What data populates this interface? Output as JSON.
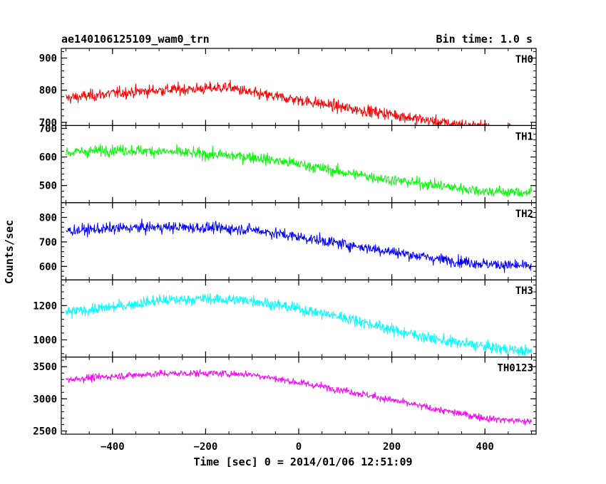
{
  "header": {
    "title": "ae140106125109_wam0_trn",
    "bin_time": "Bin time: 1.0 s"
  },
  "axes": {
    "xlabel": "Time [sec] 0 = 2014/01/06 12:51:09",
    "ylabel": "Counts/sec"
  },
  "chart_data": {
    "type": "line",
    "title": "ae140106125109_wam0_trn",
    "xlabel": "Time [sec] 0 = 2014/01/06 12:51:09",
    "ylabel": "Counts/sec",
    "xlim": [
      -510,
      510
    ],
    "x_ticks": [
      -400,
      -200,
      0,
      200,
      400
    ],
    "x_range_data": [
      -500,
      500
    ],
    "bin_time_s": 1.0,
    "panels": [
      {
        "name": "TH0",
        "color": "#ff0000",
        "ylim": [
          690,
          930
        ],
        "y_ticks": [
          700,
          800,
          900
        ],
        "trend_x": [
          -500,
          -400,
          -300,
          -200,
          -150,
          -100,
          0,
          100,
          200,
          300,
          400,
          500
        ],
        "trend_y": [
          775,
          790,
          800,
          805,
          810,
          790,
          770,
          745,
          725,
          700,
          685,
          670
        ],
        "noise": 28
      },
      {
        "name": "TH1",
        "color": "#00ff00",
        "ylim": [
          440,
          710
        ],
        "y_ticks": [
          500,
          600,
          700
        ],
        "trend_x": [
          -500,
          -400,
          -300,
          -200,
          -100,
          0,
          100,
          200,
          300,
          400,
          500
        ],
        "trend_y": [
          615,
          625,
          620,
          610,
          600,
          575,
          545,
          520,
          500,
          480,
          475
        ],
        "noise": 30
      },
      {
        "name": "TH2",
        "color": "#0000ff",
        "ylim": [
          545,
          860
        ],
        "y_ticks": [
          600,
          700,
          800
        ],
        "trend_x": [
          -500,
          -400,
          -300,
          -200,
          -100,
          0,
          100,
          200,
          300,
          400,
          500
        ],
        "trend_y": [
          745,
          755,
          760,
          758,
          750,
          720,
          690,
          660,
          630,
          610,
          600
        ],
        "noise": 35
      },
      {
        "name": "TH3",
        "color": "#00ffff",
        "ylim": [
          900,
          1350
        ],
        "y_ticks": [
          1000,
          1200
        ],
        "trend_x": [
          -500,
          -400,
          -300,
          -200,
          -100,
          0,
          100,
          200,
          300,
          400,
          500
        ],
        "trend_y": [
          1160,
          1190,
          1230,
          1240,
          1230,
          1180,
          1130,
          1060,
          1000,
          960,
          930
        ],
        "noise": 50
      },
      {
        "name": "TH0123",
        "color": "#ff00ff",
        "ylim": [
          2450,
          3650
        ],
        "y_ticks": [
          2500,
          3000,
          3500
        ],
        "trend_x": [
          -500,
          -400,
          -300,
          -200,
          -100,
          0,
          100,
          200,
          300,
          400,
          500
        ],
        "trend_y": [
          3300,
          3350,
          3390,
          3400,
          3380,
          3250,
          3130,
          2980,
          2830,
          2700,
          2640
        ],
        "noise": 85
      }
    ]
  }
}
